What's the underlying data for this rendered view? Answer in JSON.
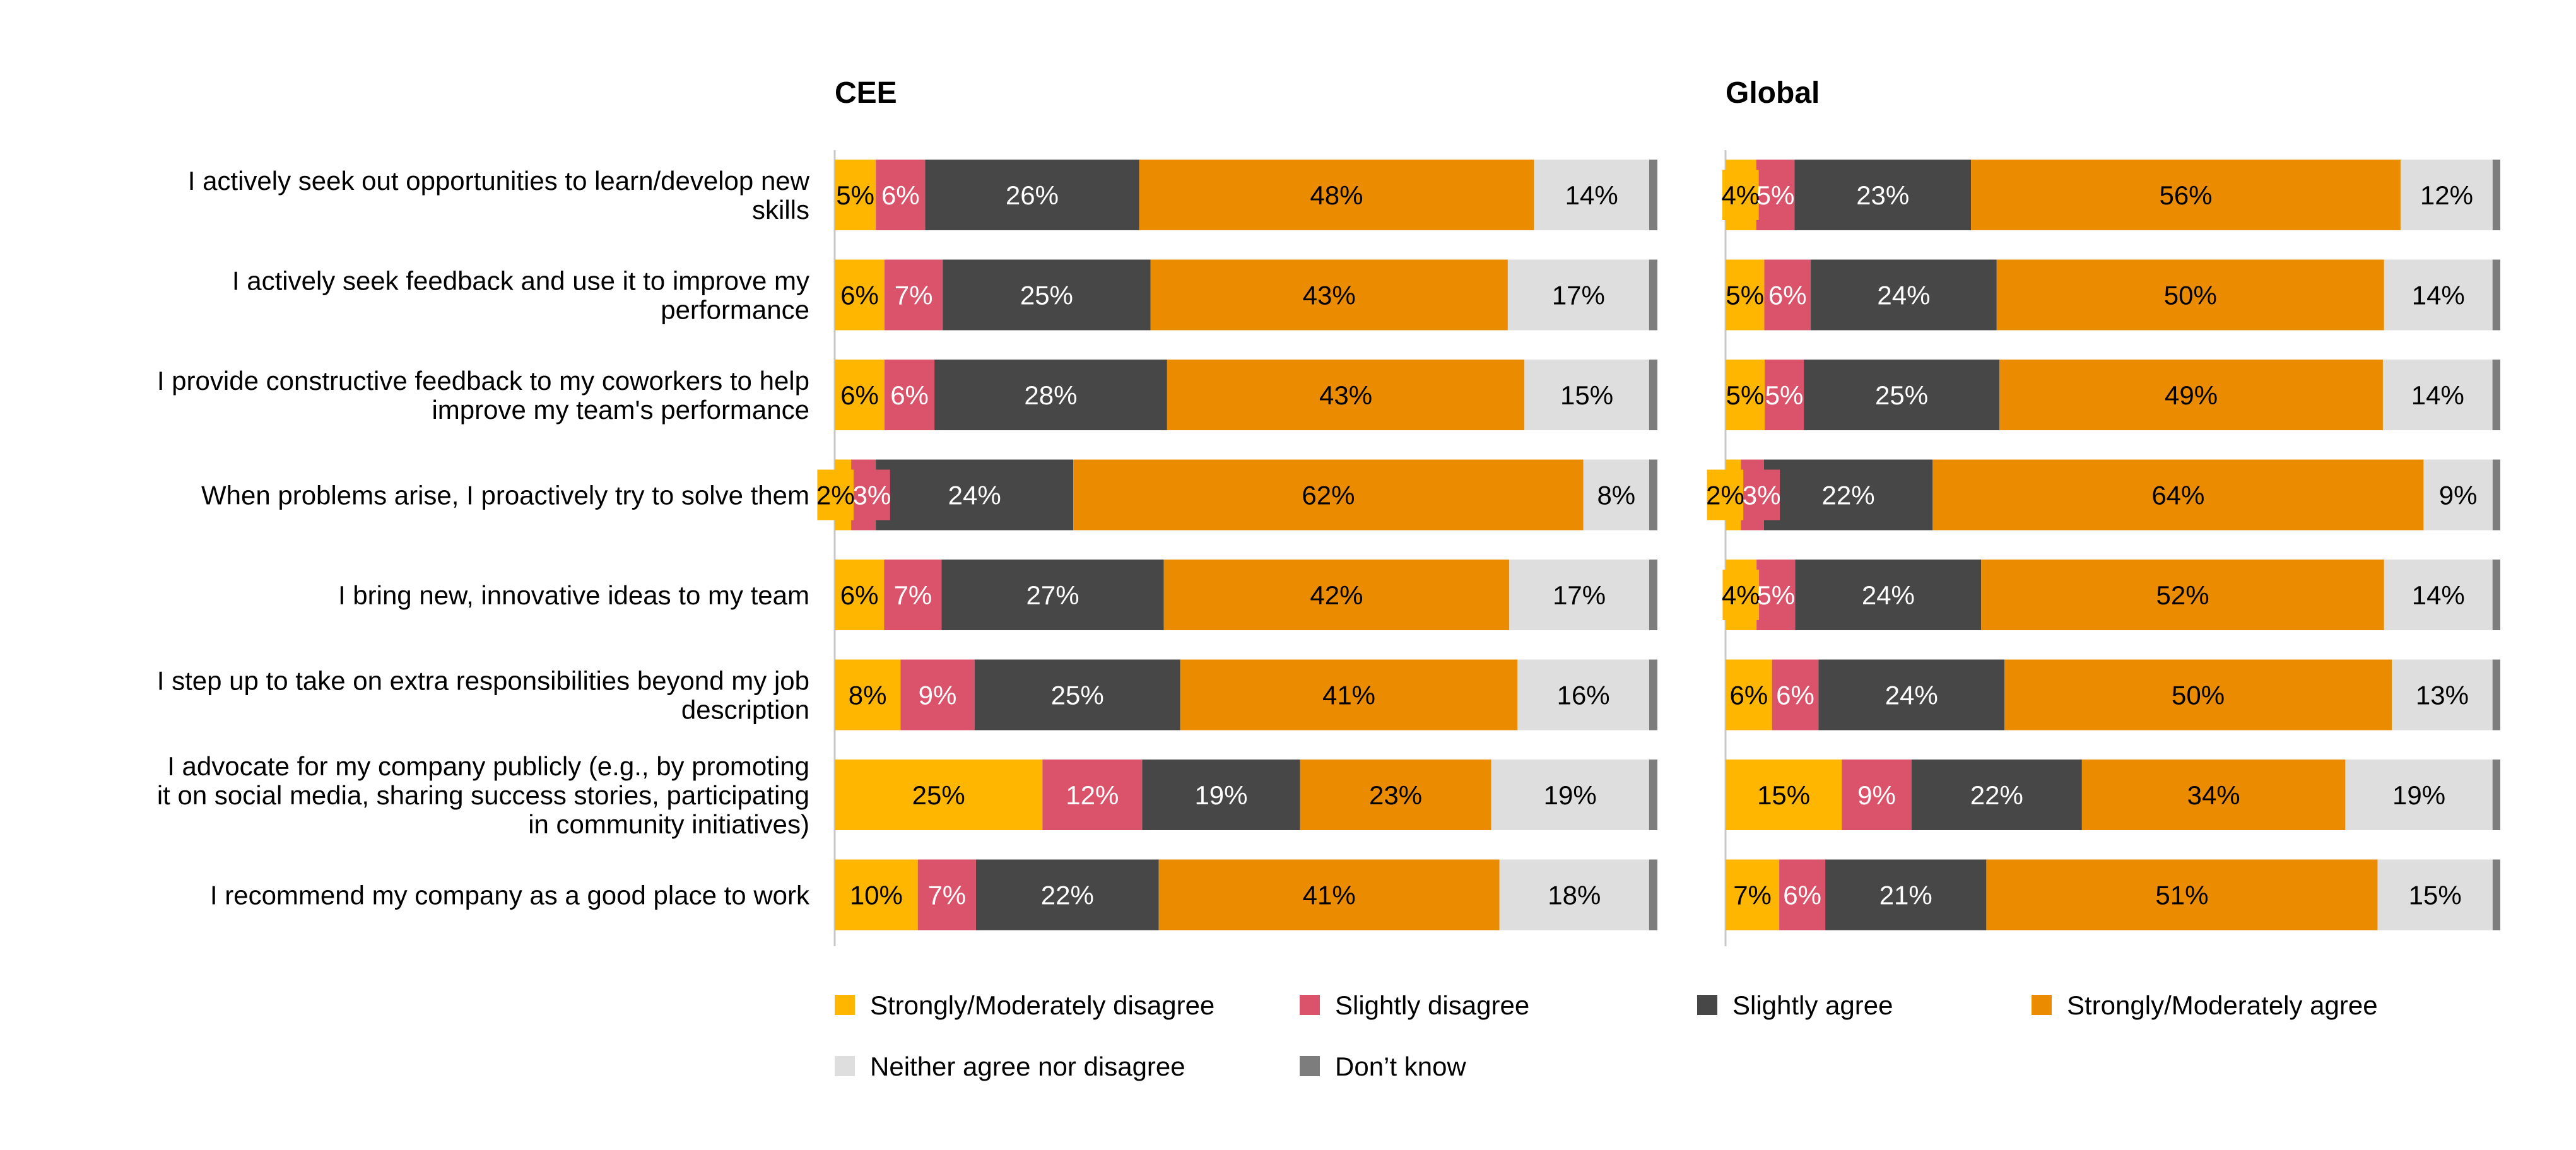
{
  "chart_data": {
    "type": "bar",
    "orientation": "horizontal-stacked",
    "categories": [
      [
        "I actively seek out opportunities to learn/develop new",
        "skills"
      ],
      [
        "I actively seek feedback and use it to improve my",
        "performance"
      ],
      [
        "I provide constructive feedback to my coworkers to help",
        "improve my team's performance"
      ],
      [
        "When problems arise, I proactively try to solve them"
      ],
      [
        "I bring new, innovative ideas to my team"
      ],
      [
        "I step up to take on extra responsibilities beyond my job",
        "description"
      ],
      [
        "I advocate for my company publicly (e.g., by promoting",
        "it on social media, sharing success stories, participating",
        "in community initiatives)"
      ],
      [
        "I recommend my company as a good place to work"
      ]
    ],
    "series_names": [
      "Strongly/Moderately disagree",
      "Slightly disagree",
      "Slightly agree",
      "Strongly/Moderately agree",
      "Neither agree nor disagree",
      "Don’t know"
    ],
    "colors": [
      "#FFB600",
      "#DB536A",
      "#474747",
      "#EB8C00",
      "#DEDEDE",
      "#7D7D7D"
    ],
    "label_colors": [
      "#000000",
      "#FFFFFF",
      "#FFFFFF",
      "#000000",
      "#000000",
      "#000000"
    ],
    "panels": [
      {
        "title": "CEE",
        "values": [
          [
            5,
            6,
            26,
            48,
            14,
            1
          ],
          [
            6,
            7,
            25,
            43,
            17,
            1
          ],
          [
            6,
            6,
            28,
            43,
            15,
            1
          ],
          [
            2,
            3,
            24,
            62,
            8,
            1
          ],
          [
            6,
            7,
            27,
            42,
            17,
            1
          ],
          [
            8,
            9,
            25,
            41,
            16,
            1
          ],
          [
            25,
            12,
            19,
            23,
            19,
            1
          ],
          [
            10,
            7,
            22,
            41,
            18,
            1
          ]
        ]
      },
      {
        "title": "Global",
        "values": [
          [
            4,
            5,
            23,
            56,
            12,
            1
          ],
          [
            5,
            6,
            24,
            50,
            14,
            1
          ],
          [
            5,
            5,
            25,
            49,
            14,
            1
          ],
          [
            2,
            3,
            22,
            64,
            9,
            1
          ],
          [
            4,
            5,
            24,
            52,
            14,
            1
          ],
          [
            6,
            6,
            24,
            50,
            13,
            1
          ],
          [
            15,
            9,
            22,
            34,
            19,
            1
          ],
          [
            7,
            6,
            21,
            51,
            15,
            1
          ]
        ]
      }
    ],
    "labeled_series": [
      0,
      1,
      2,
      3,
      4
    ],
    "value_suffix": "%",
    "legend_position": "bottom",
    "legend_order": [
      0,
      1,
      2,
      3,
      4,
      5
    ]
  }
}
